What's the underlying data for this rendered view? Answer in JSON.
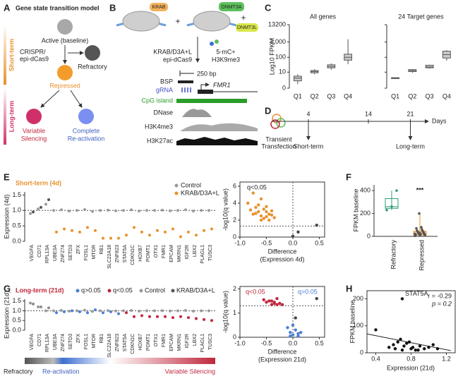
{
  "panel_labels": [
    "A",
    "B",
    "C",
    "D",
    "E",
    "F",
    "G",
    "H"
  ],
  "genes": [
    "VEGFA",
    "CD71",
    "RPL13A",
    "UBE3A",
    "ZNF274",
    "SETD3",
    "ZFX",
    "FOSL1",
    "MTOR",
    "RB1",
    "SLC22A18",
    "ZNF823",
    "STAT5A",
    "CDKN1C",
    "HOXB7",
    "POMT1",
    "OTX1",
    "FMR1",
    "EPCAM",
    "MKRN1",
    "IGF2R",
    "LBX2",
    "PLAGL1",
    "TUSC3"
  ],
  "A": {
    "title": "Gene state transition model",
    "short_term": "Short-term",
    "long_term": "Long-term",
    "active": "Active (baseline)",
    "crispr": [
      "CRISPR/",
      "epi-dCas9"
    ],
    "refractory": "Refractory",
    "repressed": "Repressed",
    "variable": [
      "Variable",
      "Silencing"
    ],
    "complete": [
      "Complete",
      "Re-activation"
    ]
  },
  "B": {
    "krab": "KRAB",
    "dnmt3a": "DNMT3A",
    "dnmt3l": "DNMT3L",
    "plus": "+",
    "construct": [
      "KRAB/D3A+L",
      "epi-dCas9"
    ],
    "marks": [
      "5-mC+",
      "H3K9me3"
    ],
    "scale": "250 bp",
    "gene": "FMR1",
    "tracks": [
      "BSP",
      "gRNA",
      "CpG island",
      "DNase",
      "H3K4me3",
      "H3K27ac"
    ]
  },
  "C": {
    "type": "box",
    "y_label": "Log10 FPKM",
    "ylim": [
      0,
      13200
    ],
    "yticks": [
      0,
      10,
      100,
      {
        "value": 1000,
        "label": "1,000"
      },
      13200
    ],
    "log_scale": true,
    "categories": [
      "Q1",
      "Q2",
      "Q3",
      "Q4"
    ],
    "color": "#cccccc",
    "charts": [
      {
        "title": "All genes",
        "boxes": [
          [
            0.8,
            2,
            3.5,
            5,
            7
          ],
          [
            7,
            9,
            11,
            13,
            16
          ],
          [
            15,
            20,
            25,
            32,
            40
          ],
          [
            35,
            65,
            100,
            160,
            1500
          ]
        ]
      },
      {
        "title": "24 Target genes",
        "boxes": [
          [
            3,
            3.2,
            3.5,
            3.8,
            4
          ],
          [
            9,
            11,
            13,
            15,
            16
          ],
          [
            18,
            20,
            23,
            30,
            32
          ],
          [
            60,
            90,
            150,
            250,
            290
          ]
        ]
      }
    ]
  },
  "D": {
    "xlim": [
      0,
      24
    ],
    "xticks": [
      4,
      14,
      21
    ],
    "x_label": "Days",
    "start": [
      "Transient",
      "Transfection"
    ],
    "short_term": "Short-term",
    "long_term": "Long-term"
  },
  "E": {
    "type": "dot",
    "title": "Short-term (4d)",
    "legend": [
      "Control",
      "KRAB/D3A+L"
    ],
    "colors": [
      "#9a9a9a",
      "#e8912c"
    ],
    "y_label": "Expression (4d)",
    "ylim": [
      0,
      1.6
    ],
    "yticks": [
      {
        "value": 0,
        "label": "0.0"
      },
      0.5,
      {
        "value": 1,
        "label": "1.0"
      },
      1.5
    ],
    "reference_line": 1,
    "control": [
      0.9,
      1.05,
      1.2,
      1.0,
      1.02,
      0.98,
      1.0,
      1.03,
      0.97,
      1.0,
      1.01,
      0.99,
      1.0,
      1.02,
      0.98,
      1.0,
      1.0,
      1.01,
      0.99,
      1.0,
      1.02,
      0.98,
      1.0,
      1.0
    ],
    "treated": [
      0.95,
      1.1,
      1.35,
      0.3,
      0.4,
      0.35,
      0.3,
      0.45,
      0.35,
      0.1,
      0.1,
      0.1,
      0.2,
      0.45,
      0.3,
      0.2,
      0.35,
      0.3,
      0.4,
      0.15,
      0.3,
      0.2,
      0.35,
      0.4
    ],
    "volcano": {
      "type": "scatter",
      "annotation": "q<0.05",
      "y_label": "-log10(q value)",
      "x_label": [
        "Difference",
        "(Expression 4d)"
      ],
      "xlim": [
        -1,
        0.6
      ],
      "xticks": [
        {
          "value": -1,
          "label": "-1.0"
        },
        -0.5,
        {
          "value": 0,
          "label": "0.0"
        },
        0.5
      ],
      "ylim": [
        0,
        6.5
      ],
      "yticks": [
        0,
        2,
        4,
        6
      ],
      "threshold_x": 0,
      "threshold_y": 1.3,
      "series": [
        {
          "color": "#e8912c",
          "x": [
            -0.85,
            -0.8,
            -0.75,
            -0.7,
            -0.7,
            -0.65,
            -0.6,
            -0.6,
            -0.55,
            -0.55,
            -0.5,
            -0.5,
            -0.45,
            -0.45,
            -0.4,
            -0.4,
            -0.35,
            -0.65,
            -0.75,
            -0.5,
            -0.6
          ],
          "y": [
            4.0,
            3.2,
            5.2,
            3.5,
            2.8,
            3.0,
            4.5,
            2.5,
            3.3,
            2.2,
            3.0,
            2.4,
            2.7,
            2.0,
            3.1,
            2.6,
            2.3,
            3.8,
            2.7,
            3.6,
            2.0
          ]
        },
        {
          "color": "#444444",
          "x": [
            0.0,
            0.1,
            0.45
          ],
          "y": [
            0.1,
            0.6,
            1.4
          ]
        }
      ]
    }
  },
  "F": {
    "type": "box",
    "y_label": "FPKM baseline",
    "ylim": [
      0,
      450
    ],
    "yticks": [
      0,
      200,
      400
    ],
    "categories": [
      "Refractory",
      "Repressed"
    ],
    "colors": [
      "#2a9d7a",
      "#e8912c"
    ],
    "annotation": "***",
    "boxes": [
      [
        230,
        245,
        260,
        330,
        400
      ],
      [
        5,
        12,
        22,
        45,
        200
      ]
    ],
    "points": [
      [
        230,
        260,
        400
      ],
      [
        5,
        10,
        15,
        20,
        25,
        30,
        35,
        40,
        45,
        50,
        60,
        70,
        80,
        12,
        18,
        22,
        28,
        8,
        200
      ]
    ]
  },
  "G": {
    "type": "dot",
    "title": "Long-term (21d)",
    "legend": [
      "q>0.05",
      "q<0.05",
      "Control",
      "KRAB/D3A+L"
    ],
    "legend_colors": [
      "#4a7fd4",
      "#c0283c",
      "#9a9a9a",
      "#555555"
    ],
    "y_label": "Expression (21d)",
    "ylim": [
      0,
      1.6
    ],
    "yticks": [
      {
        "value": 0,
        "label": "0.0"
      },
      0.5,
      {
        "value": 1,
        "label": "1.0"
      },
      1.5
    ],
    "reference_line": 1,
    "group_colors": {
      "control": "#8c8c8c",
      "reactivation": "#4a7fd4",
      "silencing": "#c0283c"
    },
    "groups": [
      "control",
      "control",
      "control",
      "reactivation",
      "reactivation",
      "reactivation",
      "reactivation",
      "reactivation",
      "reactivation",
      "reactivation",
      "reactivation",
      "reactivation",
      "silencing",
      "silencing",
      "silencing",
      "silencing",
      "silencing",
      "silencing",
      "silencing",
      "silencing",
      "silencing",
      "silencing",
      "silencing",
      "silencing"
    ],
    "control": [
      1.4,
      1.2,
      1.0,
      1.0,
      1.02,
      0.98,
      1.0,
      1.03,
      0.97,
      1.0,
      1.01,
      0.99,
      1.0,
      1.02,
      0.98,
      1.0,
      1.0,
      1.01,
      0.99,
      1.0,
      1.02,
      0.98,
      1.0,
      1.0
    ],
    "treated": [
      1.35,
      1.2,
      1.15,
      0.9,
      0.95,
      1.0,
      0.95,
      0.9,
      1.05,
      0.9,
      0.95,
      0.85,
      0.9,
      0.7,
      0.75,
      0.7,
      0.7,
      0.7,
      0.65,
      0.7,
      0.65,
      0.6,
      0.55,
      0.5
    ],
    "colorbar": [
      "Refractory",
      "Re-activation",
      "Variable Silencing"
    ],
    "volcano": {
      "type": "scatter",
      "annotations": [
        "q<0.05",
        "q>0.05"
      ],
      "y_label": "-log10(q value)",
      "x_label": [
        "Difference",
        "(Expression 21d)"
      ],
      "xlim": [
        -1,
        0.6
      ],
      "xticks": [
        {
          "value": -1,
          "label": "-1.0"
        },
        -0.5,
        {
          "value": 0,
          "label": "0.0"
        },
        0.5
      ],
      "ylim": [
        0,
        2.1
      ],
      "yticks": [
        0,
        1,
        2
      ],
      "threshold_x": 0,
      "threshold_y": 1.3,
      "series": [
        {
          "color": "#c0283c",
          "x": [
            -0.55,
            -0.5,
            -0.45,
            -0.4,
            -0.35,
            -0.3,
            -0.3,
            -0.25,
            -0.4,
            -0.2,
            -0.35
          ],
          "y": [
            1.55,
            1.45,
            1.5,
            1.35,
            1.4,
            1.35,
            1.6,
            1.4,
            1.5,
            1.35,
            1.45
          ]
        },
        {
          "color": "#4a7fd4",
          "x": [
            -0.1,
            -0.05,
            0,
            0.05,
            0.1,
            0.15,
            0.0,
            -0.05,
            0.1
          ],
          "y": [
            0.4,
            0.2,
            0.1,
            0.3,
            0.05,
            0.2,
            0.5,
            0.05,
            0.15
          ]
        },
        {
          "color": "#444444",
          "x": [
            0.05,
            0.45
          ],
          "y": [
            0.8,
            1.6
          ]
        }
      ]
    }
  },
  "H": {
    "type": "scatter",
    "y_label": "FPKM baseline",
    "x_label": "Expression (21d)",
    "xlim": [
      0.3,
      1.3
    ],
    "xticks": [
      {
        "value": 0.4,
        "label": "0.4"
      },
      {
        "value": 0.8,
        "label": "0.8"
      },
      {
        "value": 1.2,
        "label": "1.2"
      }
    ],
    "ylim": [
      0,
      230
    ],
    "yticks": [
      0,
      100,
      200
    ],
    "x": [
      0.4,
      0.55,
      0.6,
      0.62,
      0.65,
      0.7,
      0.72,
      0.75,
      0.8,
      0.82,
      0.85,
      0.9,
      0.95,
      1.0,
      1.05,
      1.1,
      0.68,
      0.78,
      0.88,
      0.7
    ],
    "y": [
      85,
      20,
      30,
      15,
      40,
      10,
      25,
      35,
      15,
      20,
      10,
      25,
      15,
      20,
      30,
      15,
      50,
      40,
      10,
      200
    ],
    "highlight": "STAT5A",
    "stats": [
      "r = -0.29",
      "p = 0.2"
    ],
    "fit": {
      "x": [
        0.3,
        1.25
      ],
      "y": [
        70,
        8
      ]
    }
  }
}
